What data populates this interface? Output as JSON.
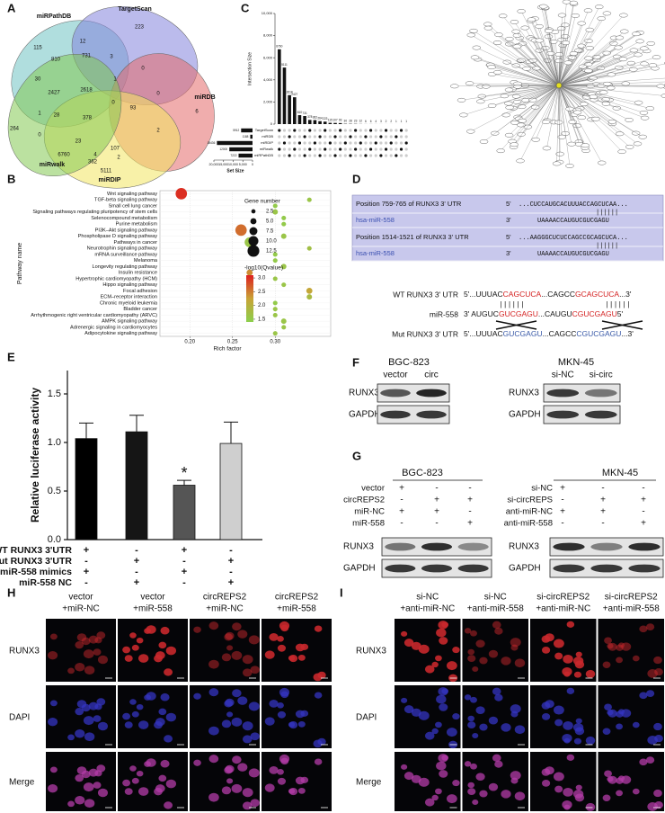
{
  "panel_labels": [
    "A",
    "B",
    "C",
    "D",
    "E",
    "F",
    "G",
    "H",
    "I"
  ],
  "venn": {
    "sets": [
      {
        "name": "miRPathDB",
        "color": "#6fc3c3"
      },
      {
        "name": "TargetScan",
        "color": "#8484dc"
      },
      {
        "name": "miRDB",
        "color": "#e46a6a"
      },
      {
        "name": "miRDIP",
        "color": "#f2e660"
      },
      {
        "name": "miRwalk",
        "color": "#84c852"
      }
    ],
    "counts": [
      115,
      12,
      223,
      810,
      731,
      3,
      0,
      30,
      2427,
      2618,
      1,
      6,
      1,
      28,
      378,
      0,
      93,
      264,
      0,
      23,
      2,
      0,
      4,
      2,
      6760,
      362,
      107,
      5111
    ]
  },
  "chart_data": [
    {
      "type": "upset",
      "ylabel": "Intersection Size",
      "xlabel": "Set Size",
      "values": [
        6760,
        5111,
        2618,
        2427,
        810,
        731,
        378,
        362,
        264,
        223,
        115,
        107,
        93,
        30,
        28,
        23,
        12,
        6,
        6,
        4,
        3,
        2,
        2,
        1,
        1,
        1
      ],
      "color": "#111111",
      "ylim": [
        0,
        10000
      ],
      "yticks": [
        0,
        {
          "value": 2000,
          "label": "2,000"
        },
        {
          "value": 4000,
          "label": "4,000"
        },
        {
          "value": 6000,
          "label": "6,000"
        },
        {
          "value": 8000,
          "label": "8,000"
        },
        {
          "value": 10000,
          "label": "10,000"
        }
      ],
      "sets": [
        "TargetScan",
        "miRDB",
        "miRDIP",
        "miRwalk",
        "miRPathDB"
      ],
      "set_sizes": [
        5912,
        1188,
        18436,
        12000,
        7222
      ],
      "xlim": [
        20000,
        0
      ],
      "xticks": [
        {
          "value": 20000,
          "label": "20,000"
        },
        {
          "value": 15000,
          "label": "15,000"
        },
        {
          "value": 10000,
          "label": "10,000"
        },
        {
          "value": 5000,
          "label": "5,000"
        },
        0
      ]
    },
    {
      "type": "dot",
      "ylabel": "Pathway name",
      "xlabel": "Rich factor",
      "categories": [
        "Wnt signaling pathway",
        "TGF-beta signaling pathway",
        "Small cell lung cancer",
        "Signaling pathways regulating pluripotency of stem cells",
        "Selenocompound metabolism",
        "Purine metabolism",
        "PI3K–Akt signaling pathway",
        "Phospholipase D signaling pathway",
        "Pathways in cancer",
        "Neurotrophin signaling pathway",
        "mRNA surveillance pathway",
        "Melanoma",
        "Longevity regulating pathway",
        "Insulin resistance",
        "Hypertrophic cardiomyopathy (HCM)",
        "Hippo signaling pathway",
        "Focal adhesion",
        "ECM–receptor interaction",
        "Chronic myeloid leukemia",
        "Bladder cancer",
        "Arrhythmogenic right ventricular cardiomyopathy (ARVC)",
        "AMPK signaling pathway",
        "Adrenergic signaling in cardiomyocytes",
        "Adipocytokine signaling pathway"
      ],
      "values": [
        0.19,
        0.34,
        0.3,
        0.3,
        0.31,
        0.31,
        0.26,
        0.31,
        0.27,
        0.34,
        0.3,
        0.3,
        0.31,
        0.27,
        0.3,
        0.31,
        0.34,
        0.34,
        0.3,
        0.3,
        0.3,
        0.31,
        0.31,
        0.3
      ],
      "sizes": [
        12,
        3,
        3,
        4,
        3,
        3,
        12,
        4,
        10,
        3,
        3,
        3,
        4,
        5,
        3,
        3,
        5,
        4,
        3,
        3,
        3,
        4,
        3,
        3
      ],
      "qvalues": [
        3.0,
        1.6,
        1.5,
        1.6,
        1.5,
        1.5,
        2.6,
        1.6,
        1.6,
        1.7,
        1.5,
        1.5,
        1.6,
        2.4,
        1.6,
        1.6,
        2.2,
        1.8,
        1.5,
        1.6,
        1.6,
        1.6,
        1.6,
        1.6
      ],
      "xlim": [
        0.165,
        0.365
      ],
      "xticks": [
        {
          "value": 0.2,
          "label": "0.20"
        },
        0.25,
        {
          "value": 0.3,
          "label": "0.30"
        }
      ],
      "grid": true,
      "size_legend_title": "Gene number",
      "size_legend": [
        2.5,
        {
          "value": 5,
          "label": "5.0"
        },
        7.5,
        {
          "value": 10,
          "label": "10.0"
        },
        12.5
      ],
      "color_legend_title": "-log10(Qvalue)",
      "color_scale": [
        "#8ccf4d",
        "#c8a336",
        "#de1f1f"
      ],
      "color_lim": [
        1.4,
        3.1
      ],
      "color_ticks": [
        1.5,
        {
          "value": 2,
          "label": "2.0"
        },
        2.5,
        {
          "value": 3,
          "label": "3.0"
        }
      ]
    },
    {
      "type": "bar",
      "ylabel": "Relative luciferase activity",
      "values": [
        1.04,
        1.11,
        0.56,
        0.99
      ],
      "errors": [
        0.16,
        0.17,
        0.05,
        0.22
      ],
      "colors": [
        "#000000",
        "#151515",
        "#555555",
        "#cfcfcf"
      ],
      "annotations": [
        null,
        null,
        "*",
        null
      ],
      "ylim": [
        0,
        1.5
      ],
      "yticks": [
        {
          "value": 0,
          "label": "0.0"
        },
        0.5,
        {
          "value": 1,
          "label": "1.0"
        },
        1.5
      ],
      "conditions": [
        {
          "label": "WT RUNX3 3'UTR",
          "signs": [
            "+",
            "-",
            "+",
            "-"
          ]
        },
        {
          "label": "Mut RUNX3 3'UTR",
          "signs": [
            "-",
            "+",
            "-",
            "+"
          ]
        },
        {
          "label": "miR-558 mimics",
          "signs": [
            "+",
            "-",
            "+",
            "-"
          ]
        },
        {
          "label": "miR-558 NC",
          "signs": [
            "-",
            "+",
            "-",
            "+"
          ]
        }
      ]
    }
  ],
  "motif_box": [
    {
      "position": "Position 759-765 of RUNX3 3' UTR",
      "utr_end": "5'",
      "utr": "...CUCCAUGCACUUUACCAGCUCAA...",
      "mirna": "hsa-miR-558",
      "mirna_end": "3'",
      "mirna_seq": "UAAAACCAUGUCGUCGAGU"
    },
    {
      "position": "Position 1514-1521 of RUNX3 3' UTR",
      "utr_end": "5'",
      "utr": "...AAGGGCUCUCCAGCCGCAGCUCA...",
      "mirna": "hsa-miR-558",
      "mirna_end": "3'",
      "mirna_seq": "UAAAACCAUGUCGUCGAGU"
    }
  ],
  "alignment": [
    {
      "label": "WT RUNX3 3' UTR",
      "segments": [
        {
          "text": "5'...UUUAC",
          "color": "#111111"
        },
        {
          "text": "CAGCUCA",
          "color": "#d42020"
        },
        {
          "text": "...CAGCC",
          "color": "#111111"
        },
        {
          "text": "GCAGCUCA",
          "color": "#d42020"
        },
        {
          "text": "...3'",
          "color": "#111111"
        }
      ]
    },
    {
      "label": "miR-558",
      "segments": [
        {
          "text": "3' AUGUC",
          "color": "#111111"
        },
        {
          "text": "GUCGAGU",
          "color": "#d42020"
        },
        {
          "text": "...CAUGU",
          "color": "#111111"
        },
        {
          "text": "CGUCGAGU",
          "color": "#d42020"
        },
        {
          "text": "5'",
          "color": "#111111"
        }
      ]
    },
    {
      "label": "Mut RUNX3 3' UTR",
      "segments": [
        {
          "text": "5'...UUUAC",
          "color": "#111111"
        },
        {
          "text": "GUCGAGU",
          "color": "#3a5aa8"
        },
        {
          "text": "...CAGCC",
          "color": "#111111"
        },
        {
          "text": "CGUCGAGU",
          "color": "#3a5aa8"
        },
        {
          "text": "...3'",
          "color": "#111111"
        }
      ]
    }
  ],
  "western_f": [
    {
      "cell_line": "BGC-823",
      "lanes": [
        "vector",
        "circ"
      ],
      "rows": [
        "RUNX3",
        "GAPDH"
      ]
    },
    {
      "cell_line": "MKN-45",
      "lanes": [
        "si-NC",
        "si-circ"
      ],
      "rows": [
        "RUNX3",
        "GAPDH"
      ]
    }
  ],
  "western_g": [
    {
      "cell_line": "BGC-823",
      "conditions": [
        {
          "label": "vector",
          "signs": [
            "+",
            "-",
            "-"
          ]
        },
        {
          "label": "circREPS2",
          "signs": [
            "-",
            "+",
            "+"
          ]
        },
        {
          "label": "miR-NC",
          "signs": [
            "+",
            "+",
            "-"
          ]
        },
        {
          "label": "miR-558",
          "signs": [
            "-",
            "-",
            "+"
          ]
        }
      ],
      "rows": [
        "RUNX3",
        "GAPDH"
      ]
    },
    {
      "cell_line": "MKN-45",
      "conditions": [
        {
          "label": "si-NC",
          "signs": [
            "+",
            "-",
            "-"
          ]
        },
        {
          "label": "si-circREPS",
          "signs": [
            "-",
            "+",
            "+"
          ]
        },
        {
          "label": "anti-miR-NC",
          "signs": [
            "+",
            "+",
            "-"
          ]
        },
        {
          "label": "anti-miR-558",
          "signs": [
            "-",
            "-",
            "+"
          ]
        }
      ],
      "rows": [
        "RUNX3",
        "GAPDH"
      ]
    }
  ],
  "immunofluorescence": [
    {
      "columns": [
        [
          "vector",
          "+miR-NC"
        ],
        [
          "vector",
          "+miR-558"
        ],
        [
          "circREPS2",
          "+miR-NC"
        ],
        [
          "circREPS2",
          "+miR-558"
        ]
      ],
      "rows": [
        "RUNX3",
        "DAPI",
        "Merge"
      ]
    },
    {
      "columns": [
        [
          "si-NC",
          "+anti-miR-NC"
        ],
        [
          "si-NC",
          "+anti-miR-558"
        ],
        [
          "si-circREPS2",
          "+anti-miR-NC"
        ],
        [
          "si-circREPS2",
          "+anti-miR-558"
        ]
      ],
      "rows": [
        "RUNX3",
        "DAPI",
        "Merge"
      ]
    }
  ]
}
